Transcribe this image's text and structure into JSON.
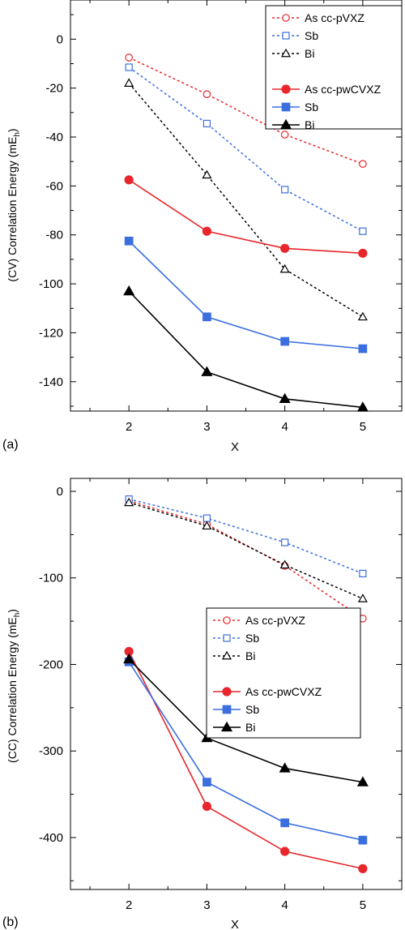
{
  "chart_data": [
    {
      "panel_label": "(a)",
      "type": "line",
      "xlabel": "X",
      "ylabel": "(CV) Correlation Energy (mE",
      "ylabel_sub": "h",
      "ylabel_close": ")",
      "x": [
        2,
        3,
        4,
        5
      ],
      "xticks": [
        2,
        3,
        4,
        5
      ],
      "yticks": [
        0,
        -20,
        -40,
        -60,
        -80,
        -100,
        -120,
        -140
      ],
      "xlim": [
        1.25,
        5.5
      ],
      "ylim": [
        -152,
        16
      ],
      "legend_position": "top-right",
      "series": [
        {
          "name": "As cc-pVXZ",
          "values": [
            -7.5,
            -22.5,
            -39,
            -51
          ],
          "color": "#e8262b",
          "marker": "circle",
          "filled": false,
          "dashed": true
        },
        {
          "name": "Sb",
          "values": [
            -11.5,
            -34.5,
            -61.5,
            -78.5
          ],
          "color": "#3b6fe0",
          "marker": "square",
          "filled": false,
          "dashed": true
        },
        {
          "name": "Bi",
          "values": [
            -18,
            -55.5,
            -94,
            -113.5
          ],
          "color": "#000000",
          "marker": "triangle",
          "filled": false,
          "dashed": true
        },
        {
          "name": "As cc-pwCVXZ",
          "values": [
            -57.5,
            -78.5,
            -85.5,
            -87.5
          ],
          "color": "#e8262b",
          "marker": "circle",
          "filled": true,
          "dashed": false
        },
        {
          "name": "Sb",
          "values": [
            -82.5,
            -113.5,
            -123.5,
            -126.5
          ],
          "color": "#3b6fe0",
          "marker": "square",
          "filled": true,
          "dashed": false
        },
        {
          "name": "Bi",
          "values": [
            -103,
            -136,
            -147,
            -150.5
          ],
          "color": "#000000",
          "marker": "triangle",
          "filled": true,
          "dashed": false
        }
      ]
    },
    {
      "panel_label": "(b)",
      "type": "line",
      "xlabel": "X",
      "ylabel": "(CC) Correlation Energy (mE",
      "ylabel_sub": "h",
      "ylabel_close": ")",
      "x": [
        2,
        3,
        4,
        5
      ],
      "xticks": [
        2,
        3,
        4,
        5
      ],
      "yticks": [
        0,
        -100,
        -200,
        -300,
        -400
      ],
      "xlim": [
        1.25,
        5.5
      ],
      "ylim": [
        -460,
        15
      ],
      "legend_position": "center-right",
      "series": [
        {
          "name": "As cc-pVXZ",
          "values": [
            -11,
            -38,
            -86,
            -147
          ],
          "color": "#e8262b",
          "marker": "circle",
          "filled": false,
          "dashed": true
        },
        {
          "name": "Sb",
          "values": [
            -9,
            -31,
            -59,
            -95
          ],
          "color": "#3b6fe0",
          "marker": "square",
          "filled": false,
          "dashed": true
        },
        {
          "name": "Bi",
          "values": [
            -13,
            -40,
            -85,
            -124
          ],
          "color": "#000000",
          "marker": "triangle",
          "filled": false,
          "dashed": true
        },
        {
          "name": "As cc-pwCVXZ",
          "values": [
            -185,
            -364,
            -416,
            -436
          ],
          "color": "#e8262b",
          "marker": "circle",
          "filled": true,
          "dashed": false
        },
        {
          "name": "Sb",
          "values": [
            -197,
            -336,
            -383,
            -403
          ],
          "color": "#3b6fe0",
          "marker": "square",
          "filled": true,
          "dashed": false
        },
        {
          "name": "Bi",
          "values": [
            -194,
            -285,
            -320,
            -336
          ],
          "color": "#000000",
          "marker": "triangle",
          "filled": true,
          "dashed": false
        }
      ]
    }
  ]
}
